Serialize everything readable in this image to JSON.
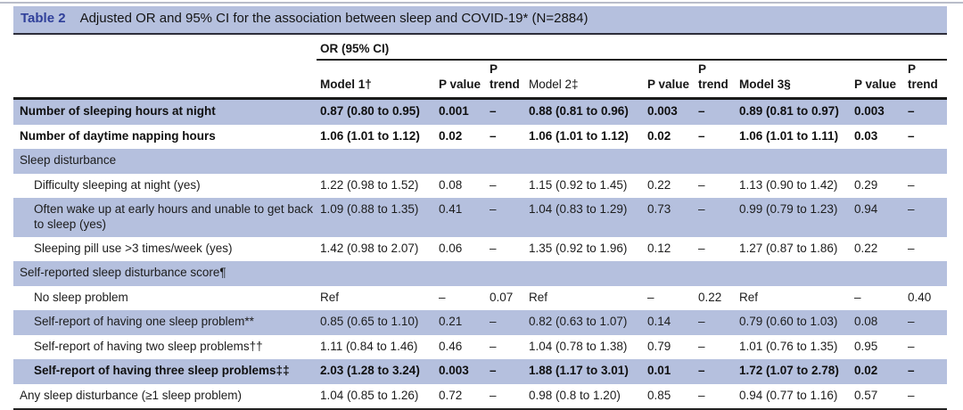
{
  "colors": {
    "band_blue": "#b5c0de",
    "title_navy": "#30409a",
    "rule_dark": "#222222",
    "text_dark": "#1a1a1a"
  },
  "table": {
    "tag": "Table 2",
    "title": "Adjusted OR and 95% CI for the association between sleep and COVID-19* (N=2884)",
    "group_header": "OR (95% CI)",
    "column_headers": [
      {
        "label": "Model 1†",
        "bold": true,
        "nowrap": true
      },
      {
        "label": "P value",
        "bold": true,
        "nowrap": false
      },
      {
        "label": "P trend",
        "bold": true,
        "nowrap": false
      },
      {
        "label": "Model 2‡",
        "bold": false,
        "nowrap": true
      },
      {
        "label": "P value",
        "bold": true,
        "nowrap": false
      },
      {
        "label": "P trend",
        "bold": true,
        "nowrap": false
      },
      {
        "label": "Model 3§",
        "bold": true,
        "nowrap": true
      },
      {
        "label": "P value",
        "bold": true,
        "nowrap": true
      },
      {
        "label": "P trend",
        "bold": true,
        "nowrap": false
      }
    ],
    "rows": [
      {
        "label": "Number of sleeping hours at night",
        "indent": false,
        "section": false,
        "shaded": true,
        "bold": true,
        "cells": [
          "0.87 (0.80 to 0.95)",
          "0.001",
          "–",
          "0.88 (0.81 to 0.96)",
          "0.003",
          "–",
          "0.89 (0.81 to 0.97)",
          "0.003",
          "–"
        ]
      },
      {
        "label": "Number of daytime napping hours",
        "indent": false,
        "section": false,
        "shaded": false,
        "bold": true,
        "cells": [
          "1.06 (1.01 to 1.12)",
          "0.02",
          "–",
          "1.06 (1.01 to 1.12)",
          "0.02",
          "–",
          "1.06 (1.01 to 1.11)",
          "0.03",
          "–"
        ]
      },
      {
        "label": "Sleep disturbance",
        "indent": false,
        "section": true,
        "shaded": true,
        "bold": false,
        "cells": [
          "",
          "",
          "",
          "",
          "",
          "",
          "",
          "",
          ""
        ]
      },
      {
        "label": "Difficulty sleeping at night (yes)",
        "indent": true,
        "section": false,
        "shaded": false,
        "bold": false,
        "cells": [
          "1.22 (0.98 to 1.52)",
          "0.08",
          "–",
          "1.15 (0.92 to 1.45)",
          "0.22",
          "–",
          "1.13 (0.90 to 1.42)",
          "0.29",
          "–"
        ]
      },
      {
        "label": "Often wake up at early hours and unable to get back to sleep (yes)",
        "indent": true,
        "section": false,
        "shaded": true,
        "bold": false,
        "cells": [
          "1.09 (0.88 to 1.35)",
          "0.41",
          "–",
          "1.04 (0.83 to 1.29)",
          "0.73",
          "–",
          "0.99 (0.79 to 1.23)",
          "0.94",
          "–"
        ]
      },
      {
        "label": "Sleeping pill use >3 times/week (yes)",
        "indent": true,
        "section": false,
        "shaded": false,
        "bold": false,
        "cells": [
          "1.42 (0.98 to 2.07)",
          "0.06",
          "–",
          "1.35 (0.92 to 1.96)",
          "0.12",
          "–",
          "1.27 (0.87 to 1.86)",
          "0.22",
          "–"
        ]
      },
      {
        "label": "Self-reported sleep disturbance score¶",
        "indent": false,
        "section": true,
        "shaded": true,
        "bold": false,
        "cells": [
          "",
          "",
          "",
          "",
          "",
          "",
          "",
          "",
          ""
        ]
      },
      {
        "label": "No sleep problem",
        "indent": true,
        "section": false,
        "shaded": false,
        "bold": false,
        "cells": [
          "Ref",
          "–",
          "0.07",
          "Ref",
          "–",
          "0.22",
          "Ref",
          "–",
          "0.40"
        ]
      },
      {
        "label": "Self-report of having one sleep problem**",
        "indent": true,
        "section": false,
        "shaded": true,
        "bold": false,
        "cells": [
          "0.85 (0.65 to 1.10)",
          "0.21",
          "–",
          "0.82 (0.63 to 1.07)",
          "0.14",
          "–",
          "0.79 (0.60 to 1.03)",
          "0.08",
          "–"
        ]
      },
      {
        "label": "Self-report of having two sleep problems††",
        "indent": true,
        "section": false,
        "shaded": false,
        "bold": false,
        "cells": [
          "1.11 (0.84 to 1.46)",
          "0.46",
          "–",
          "1.04 (0.78 to 1.38)",
          "0.79",
          "–",
          "1.01 (0.76 to 1.35)",
          "0.95",
          "–"
        ]
      },
      {
        "label": "Self-report of having three sleep problems‡‡",
        "indent": true,
        "section": false,
        "shaded": true,
        "bold": true,
        "cells": [
          "2.03 (1.28 to 3.24)",
          "0.003",
          "–",
          "1.88 (1.17 to 3.01)",
          "0.01",
          "–",
          "1.72 (1.07 to 2.78)",
          "0.02",
          "–"
        ]
      },
      {
        "label": "Any sleep disturbance (≥1 sleep problem)",
        "indent": false,
        "section": false,
        "shaded": false,
        "bold": false,
        "cells": [
          "1.04 (0.85 to 1.26)",
          "0.72",
          "–",
          "0.98 (0.8 to 1.20)",
          "0.85",
          "–",
          "0.94 (0.77 to 1.16)",
          "0.57",
          "–"
        ]
      }
    ]
  }
}
